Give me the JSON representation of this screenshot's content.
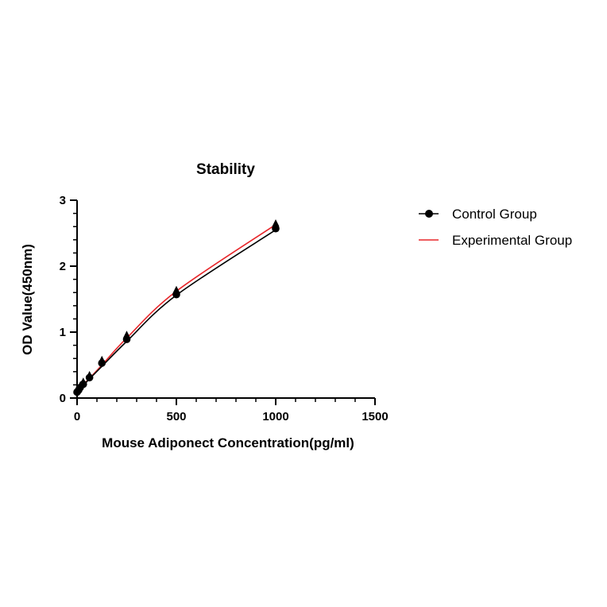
{
  "chart_data": {
    "type": "scatter",
    "title": "Stability",
    "xlabel": "Mouse Adiponect Concentration(pg/ml)",
    "ylabel": "OD Value(450nm)",
    "xlim": [
      0,
      1500
    ],
    "ylim": [
      0,
      3
    ],
    "xticks": [
      "0",
      "500",
      "1000",
      "1500"
    ],
    "yticks": [
      "0",
      "1",
      "2",
      "3"
    ],
    "grid": false,
    "legend_position": "right",
    "series": [
      {
        "name": "Control Group",
        "color": "#000000",
        "marker": "circle",
        "x": [
          0,
          7.8,
          15.6,
          31.25,
          62.5,
          125,
          250,
          500,
          1000
        ],
        "y": [
          0.09,
          0.12,
          0.16,
          0.21,
          0.31,
          0.53,
          0.89,
          1.57,
          2.57
        ],
        "curve_y": [
          0.085,
          0.11,
          0.14,
          0.19,
          0.29,
          0.48,
          0.86,
          1.56,
          2.55
        ]
      },
      {
        "name": "Experimental Group",
        "color": "#e8262a",
        "marker": "triangle",
        "x": [
          0,
          7.8,
          15.6,
          31.25,
          62.5,
          125,
          250,
          500,
          1000
        ],
        "y": [
          0.1,
          0.14,
          0.18,
          0.24,
          0.34,
          0.57,
          0.95,
          1.63,
          2.64
        ],
        "curve_y": [
          0.09,
          0.12,
          0.15,
          0.2,
          0.3,
          0.5,
          0.91,
          1.62,
          2.63
        ]
      }
    ]
  }
}
